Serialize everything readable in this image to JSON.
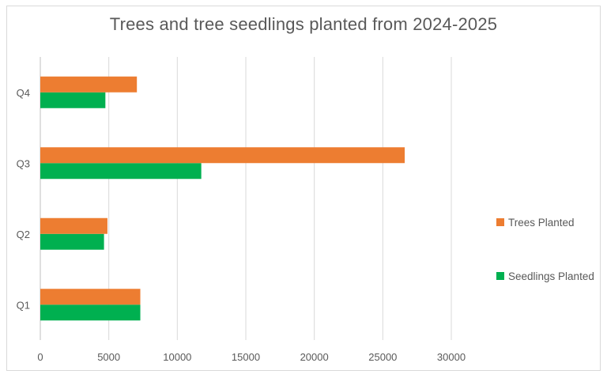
{
  "chart_data": {
    "type": "bar",
    "orientation": "horizontal",
    "title": "Trees and tree seedlings planted from 2024-2025",
    "categories": [
      "Q1",
      "Q2",
      "Q3",
      "Q4"
    ],
    "series": [
      {
        "name": "Seedlings Planted",
        "color": "#00b050",
        "values": [
          7300,
          4650,
          11750,
          4750
        ]
      },
      {
        "name": "Trees Planted",
        "color": "#ed7d31",
        "values": [
          7300,
          4900,
          26600,
          7050
        ]
      }
    ],
    "xlim": [
      0,
      30000
    ],
    "xticks": [
      "0",
      "5000",
      "10000",
      "15000",
      "20000",
      "25000",
      "30000"
    ],
    "xtick_values": [
      0,
      5000,
      10000,
      15000,
      20000,
      25000,
      30000
    ],
    "grid": "vertical",
    "legend": "right",
    "legend_order": [
      "Trees Planted",
      "Seedlings Planted"
    ]
  }
}
